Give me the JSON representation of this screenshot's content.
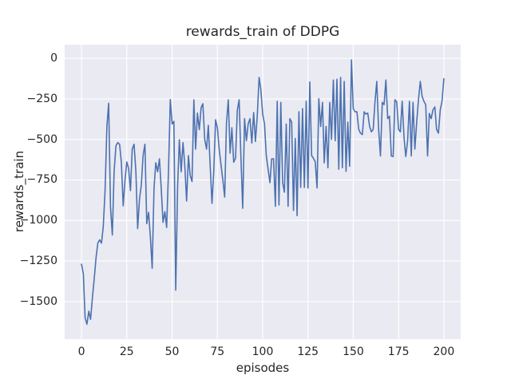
{
  "figure": {
    "background": "#ffffff"
  },
  "chart_data": {
    "type": "line",
    "title": "rewards_train of DDPG",
    "xlabel": "episodes",
    "ylabel": "rewards_train",
    "series": [
      {
        "name": "rewards_train",
        "x_mode": "index",
        "values": [
          -1270,
          -1330,
          -1600,
          -1640,
          -1560,
          -1610,
          -1480,
          -1360,
          -1230,
          -1140,
          -1120,
          -1140,
          -1040,
          -815,
          -420,
          -277,
          -917,
          -1090,
          -700,
          -540,
          -520,
          -530,
          -643,
          -910,
          -750,
          -640,
          -680,
          -816,
          -560,
          -530,
          -700,
          -1050,
          -870,
          -780,
          -600,
          -530,
          -1020,
          -950,
          -1100,
          -1295,
          -800,
          -644,
          -700,
          -620,
          -800,
          -1012,
          -946,
          -1044,
          -700,
          -254,
          -405,
          -389,
          -1430,
          -800,
          -502,
          -700,
          -520,
          -657,
          -880,
          -600,
          -723,
          -760,
          -256,
          -560,
          -338,
          -440,
          -305,
          -280,
          -500,
          -560,
          -413,
          -657,
          -895,
          -700,
          -379,
          -430,
          -560,
          -657,
          -750,
          -856,
          -405,
          -256,
          -585,
          -428,
          -641,
          -616,
          -321,
          -256,
          -620,
          -925,
          -372,
          -508,
          -405,
          -372,
          -523,
          -335,
          -513,
          -357,
          -118,
          -192,
          -344,
          -405,
          -600,
          -684,
          -767,
          -620,
          -620,
          -913,
          -265,
          -905,
          -272,
          -767,
          -826,
          -405,
          -913,
          -372,
          -393,
          -938,
          -494,
          -970,
          -330,
          -796,
          -310,
          -796,
          -265,
          -800,
          -146,
          -600,
          -616,
          -638,
          -800,
          -249,
          -420,
          -272,
          -645,
          -420,
          -675,
          -272,
          -500,
          -134,
          -508,
          -129,
          -684,
          -118,
          -675,
          -143,
          -697,
          -393,
          -666,
          -10,
          -310,
          -330,
          -330,
          -438,
          -462,
          -470,
          -330,
          -344,
          -338,
          -420,
          -454,
          -438,
          -265,
          -143,
          -438,
          -602,
          -272,
          -286,
          -134,
          -372,
          -357,
          -602,
          -606,
          -255,
          -270,
          -438,
          -454,
          -265,
          -486,
          -606,
          -510,
          -265,
          -602,
          -272,
          -560,
          -393,
          -255,
          -143,
          -235,
          -265,
          -286,
          -602,
          -340,
          -372,
          -318,
          -300,
          -438,
          -462,
          -318,
          -265,
          -126
        ]
      }
    ],
    "xlim": [
      -9.3,
      209.3
    ],
    "ylim": [
      -1732,
      84
    ],
    "xtick_values": [
      0,
      25,
      50,
      75,
      100,
      125,
      150,
      175,
      200
    ],
    "xtick_labels": [
      "0",
      "25",
      "50",
      "75",
      "100",
      "125",
      "150",
      "175",
      "200"
    ],
    "ytick_values": [
      0,
      -250,
      -500,
      -750,
      -1000,
      -1250,
      -1500
    ],
    "ytick_labels": [
      "0",
      "−250",
      "−500",
      "−750",
      "−1000",
      "−1250",
      "−1500"
    ],
    "line_color": "#4c72b0",
    "plot_bg_color": "#eaeaf2",
    "grid_color": "#ffffff",
    "text_color": "#262626",
    "grid": "on",
    "legend": "none"
  }
}
